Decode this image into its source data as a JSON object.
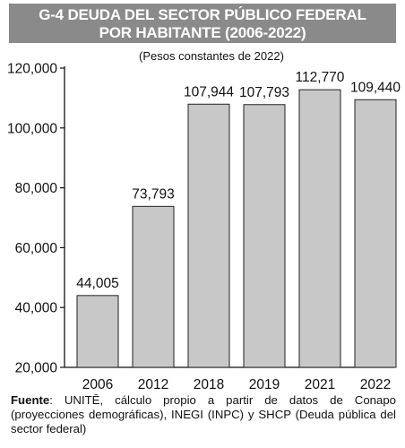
{
  "chart_data": {
    "type": "bar",
    "title": "G-4 DEUDA DEL SECTOR PÚBLICO FEDERAL POR HABITANTE (2006-2022)",
    "title_lines": [
      "G-4 DEUDA DEL SECTOR PÚBLICO FEDERAL",
      "POR HABITANTE (2006-2022)"
    ],
    "subtitle": "(Pesos constantes de 2022)",
    "categories": [
      "2006",
      "2012",
      "2018",
      "2019",
      "2021",
      "2022"
    ],
    "values": [
      44005,
      73793,
      107944,
      107793,
      112770,
      109440
    ],
    "value_labels": [
      "44,005",
      "73,793",
      "107,944",
      "107,793",
      "112,770",
      "109,440"
    ],
    "ylim": [
      20000,
      120000
    ],
    "yticks": [
      20000,
      40000,
      60000,
      80000,
      100000,
      120000
    ],
    "ytick_labels": [
      "20,000",
      "40,000",
      "60,000",
      "80,000",
      "100,000",
      "120,000"
    ],
    "bar_color": "#c8c8c8",
    "bar_stroke": "#222222",
    "grid": false,
    "xlabel": "",
    "ylabel": ""
  },
  "header_bar_color": "#8a8a8a",
  "footer": {
    "label": "Fuente",
    "text": ": UNITĒ, cálculo propio a partir de datos de Conapo (proyecciones demográficas), INEGI (INPC) y SHCP (Deuda pública del sector federal)"
  }
}
